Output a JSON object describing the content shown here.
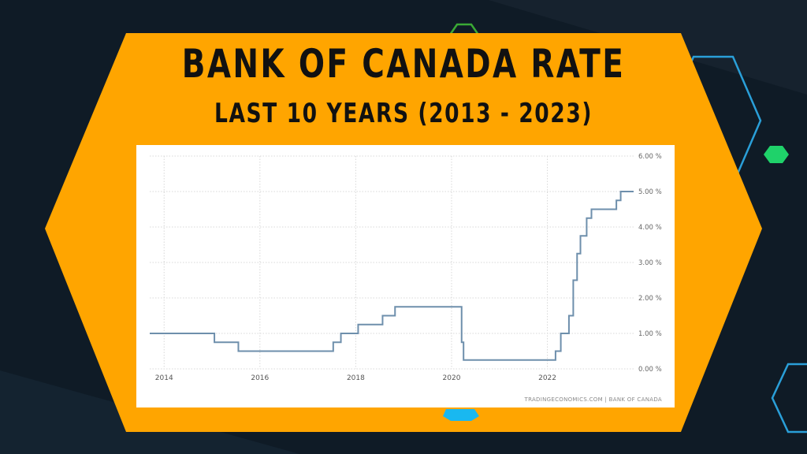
{
  "title": "BANK OF CANADA RATE",
  "subtitle": "LAST 10 YEARS (2013 - 2023)",
  "source": "TRADINGECONOMICS.COM  |  BANK OF CANADA",
  "colors": {
    "background": "#0f1b26",
    "banner": "#ffa500",
    "line": "#6e8fac",
    "grid": "#d8d8d8",
    "hex_green_outline": "#3aaa35",
    "hex_green_fill": "#1fd26a",
    "hex_blue_outline": "#2a9fd8",
    "hex_blue_fill": "#19b8f0"
  },
  "chart_data": {
    "type": "line",
    "step": true,
    "title": "",
    "xlabel": "",
    "ylabel": "",
    "xlim": [
      2013.7,
      2023.8
    ],
    "ylim": [
      0,
      6
    ],
    "x_ticks": [
      2014,
      2016,
      2018,
      2020,
      2022
    ],
    "x_tick_labels": [
      "2014",
      "2016",
      "2018",
      "2020",
      "2022"
    ],
    "y_ticks": [
      0,
      1,
      2,
      3,
      4,
      5,
      6
    ],
    "y_tick_labels": [
      "0.00 %",
      "1.00 %",
      "2.00 %",
      "3.00 %",
      "4.00 %",
      "5.00 %",
      "6.00 %"
    ],
    "grid": true,
    "series": [
      {
        "x": [
          2013.7,
          2015.05,
          2015.55,
          2017.53,
          2017.69,
          2018.05,
          2018.56,
          2018.82,
          2020.21,
          2020.25,
          2022.17,
          2022.28,
          2022.45,
          2022.54,
          2022.62,
          2022.69,
          2022.82,
          2022.92,
          2023.07,
          2023.44,
          2023.53,
          2023.8
        ],
        "y": [
          1.0,
          0.75,
          0.5,
          0.75,
          1.0,
          1.25,
          1.5,
          1.75,
          0.75,
          0.25,
          0.5,
          1.0,
          1.5,
          2.5,
          3.25,
          3.75,
          4.25,
          4.5,
          4.5,
          4.75,
          5.0,
          5.0
        ]
      }
    ]
  }
}
